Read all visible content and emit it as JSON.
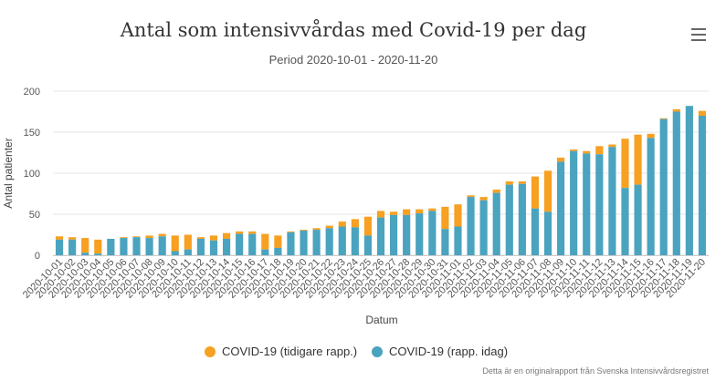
{
  "chart_data": {
    "type": "bar",
    "stacked": true,
    "title": "Antal som intensivvårdas med Covid-19 per dag",
    "subtitle": "Period 2020-10-01 - 2020-11-20",
    "xlabel": "Datum",
    "ylabel": "Antal patienter",
    "ylim": [
      0,
      200
    ],
    "yticks": [
      0,
      50,
      100,
      150,
      200
    ],
    "grid": true,
    "legend_position": "bottom",
    "categories": [
      "2020-10-01",
      "2020-10-02",
      "2020-10-03",
      "2020-10-04",
      "2020-10-05",
      "2020-10-06",
      "2020-10-07",
      "2020-10-08",
      "2020-10-09",
      "2020-10-10",
      "2020-10-11",
      "2020-10-12",
      "2020-10-13",
      "2020-10-14",
      "2020-10-15",
      "2020-10-16",
      "2020-10-17",
      "2020-10-18",
      "2020-10-19",
      "2020-10-20",
      "2020-10-21",
      "2020-10-22",
      "2020-10-23",
      "2020-10-24",
      "2020-10-25",
      "2020-10-26",
      "2020-10-27",
      "2020-10-28",
      "2020-10-29",
      "2020-10-30",
      "2020-10-31",
      "2020-11-01",
      "2020-11-02",
      "2020-11-03",
      "2020-11-04",
      "2020-11-05",
      "2020-11-06",
      "2020-11-07",
      "2020-11-08",
      "2020-11-09",
      "2020-11-10",
      "2020-11-11",
      "2020-11-12",
      "2020-11-13",
      "2020-11-14",
      "2020-11-15",
      "2020-11-16",
      "2020-11-17",
      "2020-11-18",
      "2020-11-19",
      "2020-11-20"
    ],
    "series": [
      {
        "name": "COVID-19 (rapp. idag)",
        "color": "#4aa3bf",
        "values": [
          19,
          19,
          3,
          2,
          20,
          21,
          22,
          21,
          23,
          5,
          7,
          20,
          18,
          20,
          26,
          26,
          7,
          9,
          28,
          30,
          31,
          33,
          35,
          34,
          24,
          46,
          49,
          49,
          51,
          54,
          32,
          35,
          71,
          67,
          76,
          86,
          87,
          57,
          53,
          114,
          127,
          124,
          123,
          132,
          82,
          86,
          143,
          166,
          175,
          182,
          170
        ]
      },
      {
        "name": "COVID-19 (tidigare rapp.)",
        "color": "#f7a021",
        "values": [
          4,
          3,
          18,
          17,
          0,
          1,
          1,
          3,
          3,
          19,
          18,
          2,
          6,
          7,
          3,
          3,
          19,
          15,
          1,
          1,
          2,
          3,
          6,
          10,
          23,
          8,
          4,
          7,
          5,
          3,
          27,
          27,
          2,
          4,
          4,
          4,
          3,
          39,
          50,
          5,
          2,
          3,
          10,
          3,
          60,
          61,
          5,
          1,
          3,
          0,
          6
        ]
      }
    ]
  },
  "legend": {
    "items": [
      {
        "label": "COVID-19 (tidigare rapp.)",
        "color": "#f7a021"
      },
      {
        "label": "COVID-19 (rapp. idag)",
        "color": "#4aa3bf"
      }
    ]
  },
  "credits": "Detta är en originalrapport från Svenska Intensivvårdsregistret",
  "menu_icon": "hamburger-menu-icon"
}
